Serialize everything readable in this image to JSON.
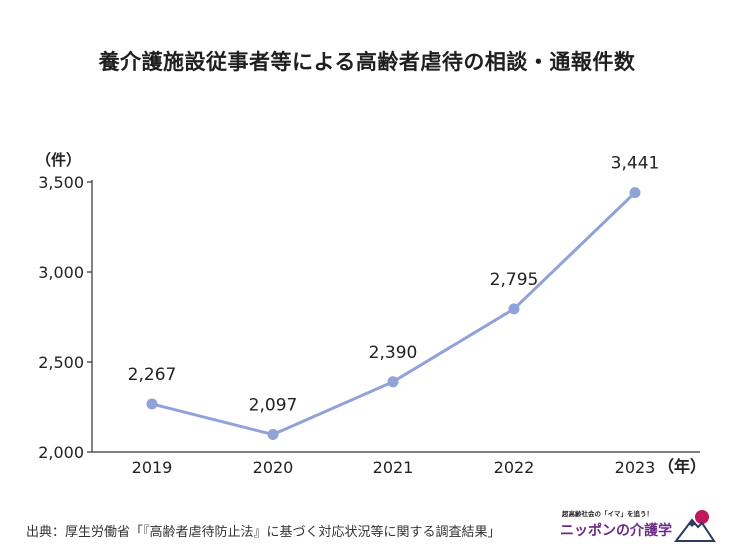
{
  "title": "養介護施設従事者等による高齢者虐待の相談・通報件数",
  "source": "出典：厚生労働省「『高齢者虐待防止法』に基づく対応状況等に関する調査結果」",
  "logo": {
    "tagline": "超高齢社会の「イマ」を追う！",
    "name": "ニッポンの介護学",
    "icon": "mountain-sun-logo-icon"
  },
  "colors": {
    "line": "#8fa3d9",
    "axis": "#333333",
    "logo_sun": "#c2185b",
    "logo_text": "#6b2a86"
  },
  "chart_data": {
    "type": "line",
    "title": "養介護施設従事者等による高齢者虐待の相談・通報件数",
    "x": [
      "2019",
      "2020",
      "2021",
      "2022",
      "2023"
    ],
    "series": [
      {
        "values": [
          2267,
          2097,
          2390,
          2795,
          3441
        ]
      }
    ],
    "data_labels": [
      "2,267",
      "2,097",
      "2,390",
      "2,795",
      "3,441"
    ],
    "yticks": [
      "2,000",
      "2,500",
      "3,000",
      "3,500"
    ],
    "ytick_values": [
      2000,
      2500,
      3000,
      3500
    ],
    "ylim": [
      2000,
      3500
    ],
    "ylabel": "（件）",
    "xlabel": "（年）",
    "grid": false,
    "legend": "none"
  }
}
